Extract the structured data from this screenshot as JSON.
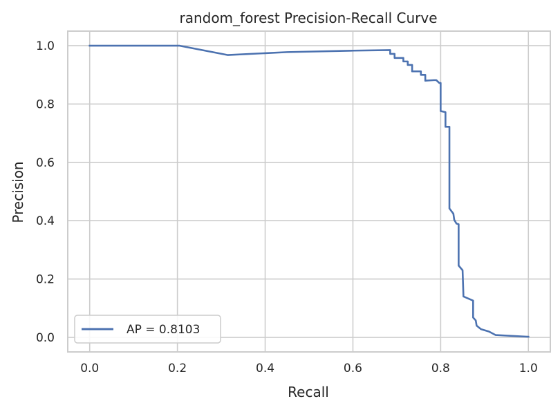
{
  "chart_data": {
    "type": "line",
    "title": "random_forest Precision-Recall Curve",
    "xlabel": "Recall",
    "ylabel": "Precision",
    "xlim": [
      -0.05,
      1.05
    ],
    "ylim": [
      -0.05,
      1.05
    ],
    "x_ticks": [
      0.0,
      0.2,
      0.4,
      0.6,
      0.8,
      1.0
    ],
    "x_tick_labels": [
      "0.0",
      "0.2",
      "0.4",
      "0.6",
      "0.8",
      "1.0"
    ],
    "y_ticks": [
      0.0,
      0.2,
      0.4,
      0.6,
      0.8,
      1.0
    ],
    "y_tick_labels": [
      "0.0",
      "0.2",
      "0.4",
      "0.6",
      "0.8",
      "1.0"
    ],
    "grid": true,
    "legend_position": "lower-left",
    "series": [
      {
        "name": "AP = 0.8103",
        "color": "#4c72b0",
        "points": [
          [
            0.0,
            1.0
          ],
          [
            0.205,
            1.0
          ],
          [
            0.315,
            0.968
          ],
          [
            0.45,
            0.978
          ],
          [
            0.6,
            0.983
          ],
          [
            0.685,
            0.985
          ],
          [
            0.685,
            0.972
          ],
          [
            0.695,
            0.972
          ],
          [
            0.695,
            0.958
          ],
          [
            0.715,
            0.958
          ],
          [
            0.715,
            0.946
          ],
          [
            0.725,
            0.946
          ],
          [
            0.725,
            0.934
          ],
          [
            0.735,
            0.934
          ],
          [
            0.735,
            0.912
          ],
          [
            0.755,
            0.912
          ],
          [
            0.755,
            0.9
          ],
          [
            0.765,
            0.9
          ],
          [
            0.765,
            0.88
          ],
          [
            0.785,
            0.882
          ],
          [
            0.79,
            0.882
          ],
          [
            0.797,
            0.872
          ],
          [
            0.8,
            0.872
          ],
          [
            0.8,
            0.776
          ],
          [
            0.811,
            0.772
          ],
          [
            0.811,
            0.722
          ],
          [
            0.82,
            0.722
          ],
          [
            0.82,
            0.442
          ],
          [
            0.829,
            0.424
          ],
          [
            0.831,
            0.403
          ],
          [
            0.836,
            0.39
          ],
          [
            0.841,
            0.388
          ],
          [
            0.841,
            0.246
          ],
          [
            0.85,
            0.23
          ],
          [
            0.852,
            0.14
          ],
          [
            0.874,
            0.126
          ],
          [
            0.874,
            0.068
          ],
          [
            0.88,
            0.058
          ],
          [
            0.882,
            0.04
          ],
          [
            0.892,
            0.028
          ],
          [
            0.91,
            0.02
          ],
          [
            0.925,
            0.008
          ],
          [
            1.0,
            0.002
          ]
        ]
      }
    ]
  }
}
